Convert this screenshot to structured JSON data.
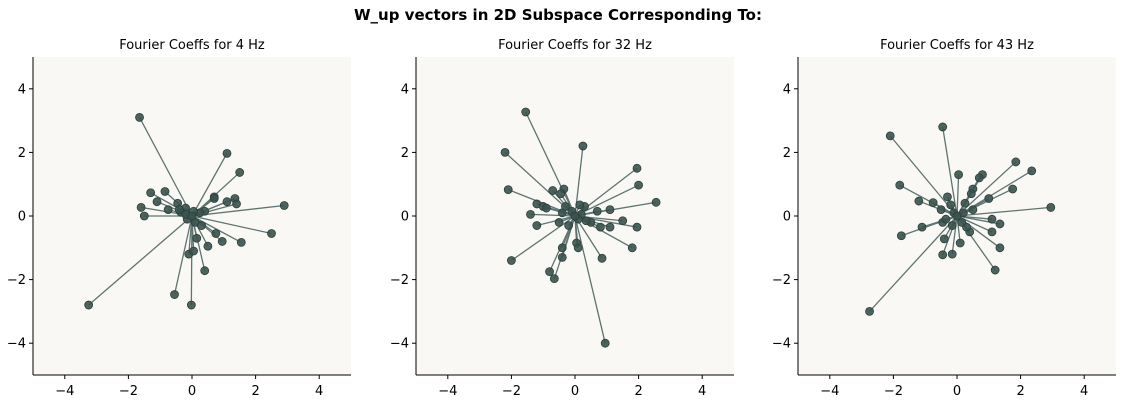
{
  "figure_title": "W_up vectors in 2D Subspace Corresponding To:",
  "colors": {
    "point": "#2f4b47",
    "line": "#5e7470",
    "plot_background": "#faf8f5"
  },
  "chart_data": [
    {
      "type": "scatter",
      "title": "Fourier Coeffs for 4 Hz",
      "xlabel": "",
      "ylabel": "",
      "xlim": [
        -5,
        5
      ],
      "ylim": [
        -5,
        5
      ],
      "xticks": [
        -4,
        -2,
        0,
        2,
        4
      ],
      "yticks": [
        -4,
        -2,
        0,
        2,
        4
      ],
      "grid": false,
      "lines_from_origin": true,
      "points": [
        [
          -1.65,
          3.1
        ],
        [
          1.1,
          1.97
        ],
        [
          1.5,
          1.37
        ],
        [
          2.9,
          0.33
        ],
        [
          -3.25,
          -2.8
        ],
        [
          -0.02,
          -2.8
        ],
        [
          -0.55,
          -2.47
        ],
        [
          0.4,
          -1.72
        ],
        [
          -0.1,
          -1.2
        ],
        [
          0.05,
          -1.1
        ],
        [
          1.55,
          -0.83
        ],
        [
          2.5,
          -0.55
        ],
        [
          0.95,
          -0.8
        ],
        [
          0.5,
          -0.95
        ],
        [
          0.75,
          -0.55
        ],
        [
          0.15,
          -0.7
        ],
        [
          -1.3,
          0.73
        ],
        [
          -0.85,
          0.77
        ],
        [
          -1.1,
          0.45
        ],
        [
          -1.6,
          0.27
        ],
        [
          -1.5,
          0.0
        ],
        [
          1.1,
          0.45
        ],
        [
          1.35,
          0.55
        ],
        [
          1.4,
          0.38
        ],
        [
          0.7,
          0.6
        ],
        [
          0.7,
          0.55
        ],
        [
          -0.45,
          0.4
        ],
        [
          0.4,
          0.15
        ],
        [
          -0.2,
          0.25
        ],
        [
          -0.75,
          0.2
        ],
        [
          -0.35,
          0.12
        ],
        [
          0.25,
          0.1
        ],
        [
          -0.15,
          -0.1
        ],
        [
          0.1,
          -0.2
        ],
        [
          -0.4,
          0.2
        ],
        [
          0.3,
          -0.3
        ],
        [
          -0.2,
          0.05
        ],
        [
          0.05,
          0.15
        ]
      ]
    },
    {
      "type": "scatter",
      "title": "Fourier Coeffs for 32 Hz",
      "xlabel": "",
      "ylabel": "",
      "xlim": [
        -5,
        5
      ],
      "ylim": [
        -5,
        5
      ],
      "xticks": [
        -4,
        -2,
        0,
        2,
        4
      ],
      "yticks": [
        -4,
        -2,
        0,
        2,
        4
      ],
      "grid": false,
      "lines_from_origin": true,
      "points": [
        [
          -1.55,
          3.27
        ],
        [
          0.25,
          2.2
        ],
        [
          -2.2,
          2.0
        ],
        [
          1.95,
          1.5
        ],
        [
          -2.1,
          0.83
        ],
        [
          2.0,
          0.97
        ],
        [
          2.55,
          0.43
        ],
        [
          1.95,
          -0.35
        ],
        [
          1.5,
          -0.15
        ],
        [
          1.8,
          -1.0
        ],
        [
          0.95,
          -4.0
        ],
        [
          0.85,
          -1.33
        ],
        [
          -2.0,
          -1.4
        ],
        [
          -0.8,
          -1.75
        ],
        [
          -0.65,
          -1.97
        ],
        [
          -0.4,
          -1.3
        ],
        [
          -0.4,
          -1.0
        ],
        [
          0.05,
          -0.85
        ],
        [
          0.1,
          -1.0
        ],
        [
          -0.35,
          0.85
        ],
        [
          -0.7,
          0.8
        ],
        [
          -0.45,
          0.7
        ],
        [
          -1.2,
          0.38
        ],
        [
          -1.0,
          0.3
        ],
        [
          -1.4,
          0.05
        ],
        [
          -0.9,
          0.25
        ],
        [
          -1.2,
          -0.3
        ],
        [
          1.1,
          0.2
        ],
        [
          0.8,
          -0.35
        ],
        [
          1.1,
          -0.35
        ],
        [
          0.7,
          0.15
        ],
        [
          0.5,
          -0.2
        ],
        [
          -0.3,
          0.3
        ],
        [
          0.3,
          0.3
        ],
        [
          -0.5,
          -0.2
        ],
        [
          0.15,
          0.35
        ],
        [
          -0.2,
          -0.3
        ],
        [
          0.35,
          -0.15
        ],
        [
          -0.4,
          0.1
        ],
        [
          0.2,
          0.05
        ],
        [
          -0.1,
          0.15
        ],
        [
          0.1,
          -0.1
        ]
      ]
    },
    {
      "type": "scatter",
      "title": "Fourier Coeffs for 43 Hz",
      "xlabel": "",
      "ylabel": "",
      "xlim": [
        -5,
        5
      ],
      "ylim": [
        -5,
        5
      ],
      "xticks": [
        -4,
        -2,
        0,
        2,
        4
      ],
      "yticks": [
        -4,
        -2,
        0,
        2,
        4
      ],
      "grid": false,
      "lines_from_origin": true,
      "points": [
        [
          -0.45,
          2.8
        ],
        [
          -2.1,
          2.52
        ],
        [
          0.05,
          1.3
        ],
        [
          0.8,
          1.3
        ],
        [
          0.7,
          1.2
        ],
        [
          1.85,
          1.7
        ],
        [
          2.35,
          1.42
        ],
        [
          1.75,
          0.85
        ],
        [
          2.95,
          0.27
        ],
        [
          -1.8,
          0.97
        ],
        [
          -1.2,
          0.47
        ],
        [
          -0.75,
          0.42
        ],
        [
          -2.75,
          -3.0
        ],
        [
          -1.75,
          -0.62
        ],
        [
          -1.1,
          -0.35
        ],
        [
          1.2,
          -1.7
        ],
        [
          1.35,
          -1.0
        ],
        [
          -0.45,
          -1.22
        ],
        [
          -0.15,
          -1.2
        ],
        [
          -0.4,
          -0.72
        ],
        [
          0.1,
          -0.85
        ],
        [
          1.1,
          -0.1
        ],
        [
          1.35,
          -0.25
        ],
        [
          1.1,
          -0.5
        ],
        [
          0.5,
          0.85
        ],
        [
          0.45,
          0.7
        ],
        [
          1.0,
          0.55
        ],
        [
          -0.5,
          0.2
        ],
        [
          -0.45,
          -0.2
        ],
        [
          0.4,
          -0.5
        ],
        [
          -0.3,
          0.6
        ],
        [
          0.5,
          0.2
        ],
        [
          0.3,
          -0.35
        ],
        [
          -0.2,
          0.35
        ],
        [
          0.25,
          0.4
        ],
        [
          -0.35,
          -0.1
        ],
        [
          0.15,
          -0.2
        ],
        [
          -0.1,
          0.1
        ],
        [
          0.2,
          0.1
        ],
        [
          -0.15,
          -0.3
        ]
      ]
    }
  ]
}
